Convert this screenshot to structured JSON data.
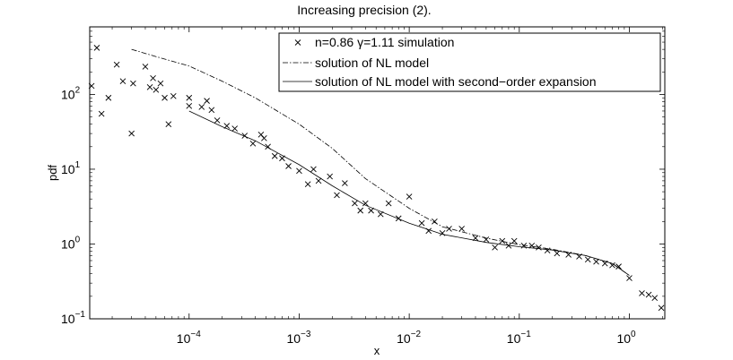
{
  "chart_data": {
    "type": "scatter",
    "title": "Increasing precision (2).",
    "xlabel": "x",
    "ylabel": "pdf",
    "xscale": "log",
    "yscale": "log",
    "xlim": [
      1.25e-05,
      2.1
    ],
    "ylim": [
      0.1,
      800
    ],
    "grid": false,
    "legend_position": "top-right",
    "x_ticks": [
      {
        "base": "10",
        "exp": "−4",
        "value": 0.0001
      },
      {
        "base": "10",
        "exp": "−3",
        "value": 0.001
      },
      {
        "base": "10",
        "exp": "−2",
        "value": 0.01
      },
      {
        "base": "10",
        "exp": "−1",
        "value": 0.1
      },
      {
        "base": "10",
        "exp": "0",
        "value": 1
      }
    ],
    "y_ticks": [
      {
        "base": "10",
        "exp": "−1",
        "value": 0.1
      },
      {
        "base": "10",
        "exp": "0",
        "value": 1
      },
      {
        "base": "10",
        "exp": "1",
        "value": 10
      },
      {
        "base": "10",
        "exp": "2",
        "value": 100
      }
    ],
    "series": [
      {
        "name": "n=0.86 γ=1.11 simulation",
        "style": "markers-x",
        "x": [
          1.3e-05,
          1.45e-05,
          1.6e-05,
          1.85e-05,
          2.2e-05,
          2.5e-05,
          3e-05,
          3.1e-05,
          4e-05,
          4.4e-05,
          4.7e-05,
          5e-05,
          5.5e-05,
          6e-05,
          6.5e-05,
          7.2e-05,
          0.0001,
          0.0001,
          0.00013,
          0.000145,
          0.00016,
          0.00018,
          0.00022,
          0.00026,
          0.00032,
          0.00038,
          0.00045,
          0.00048,
          0.00052,
          0.0006,
          0.0007,
          0.0008,
          0.001,
          0.0012,
          0.00135,
          0.0015,
          0.0019,
          0.0022,
          0.0026,
          0.0032,
          0.0036,
          0.004,
          0.0045,
          0.0055,
          0.0065,
          0.008,
          0.01,
          0.013,
          0.015,
          0.017,
          0.02,
          0.023,
          0.03,
          0.04,
          0.05,
          0.06,
          0.07,
          0.08,
          0.09,
          0.11,
          0.13,
          0.15,
          0.18,
          0.22,
          0.28,
          0.35,
          0.42,
          0.5,
          0.6,
          0.7,
          0.8,
          1.0,
          1.3,
          1.5,
          1.7,
          1.95
        ],
        "y": [
          130,
          420,
          55,
          90,
          250,
          150,
          30,
          140,
          235,
          125,
          165,
          115,
          140,
          90,
          40,
          95,
          90,
          70,
          68,
          82,
          62,
          45,
          38,
          35,
          28,
          22,
          29,
          26,
          20,
          15,
          14,
          11,
          9.5,
          6.3,
          10,
          7,
          8,
          4.5,
          6.5,
          3.5,
          2.8,
          3.5,
          2.8,
          2.5,
          3.5,
          2.2,
          4.3,
          1.9,
          1.5,
          2.0,
          1.4,
          1.6,
          1.6,
          1.2,
          1.15,
          0.9,
          1.1,
          0.95,
          1.1,
          0.95,
          0.95,
          0.9,
          0.82,
          0.75,
          0.72,
          0.68,
          0.62,
          0.58,
          0.55,
          0.52,
          0.5,
          0.35,
          0.22,
          0.21,
          0.19,
          0.14
        ]
      },
      {
        "name": "solution of NL model",
        "style": "dash-dot",
        "x": [
          3e-05,
          5e-05,
          0.0001,
          0.0002,
          0.0004,
          0.001,
          0.002,
          0.004,
          0.01,
          0.02,
          0.05,
          0.1,
          0.2,
          0.4,
          0.7,
          1.0
        ],
        "y": [
          400,
          320,
          240,
          150,
          90,
          40,
          19,
          7.5,
          3.0,
          1.7,
          1.2,
          0.98,
          0.85,
          0.7,
          0.55,
          0.38
        ]
      },
      {
        "name": "solution of NL model with second−order expansion",
        "style": "solid",
        "x": [
          0.0001,
          0.0002,
          0.0004,
          0.001,
          0.002,
          0.004,
          0.01,
          0.02,
          0.05,
          0.1,
          0.2,
          0.4,
          0.7,
          1.0
        ],
        "y": [
          60,
          37,
          24,
          11.5,
          6.0,
          3.3,
          1.9,
          1.35,
          1.05,
          0.92,
          0.83,
          0.7,
          0.55,
          0.38
        ]
      }
    ]
  }
}
